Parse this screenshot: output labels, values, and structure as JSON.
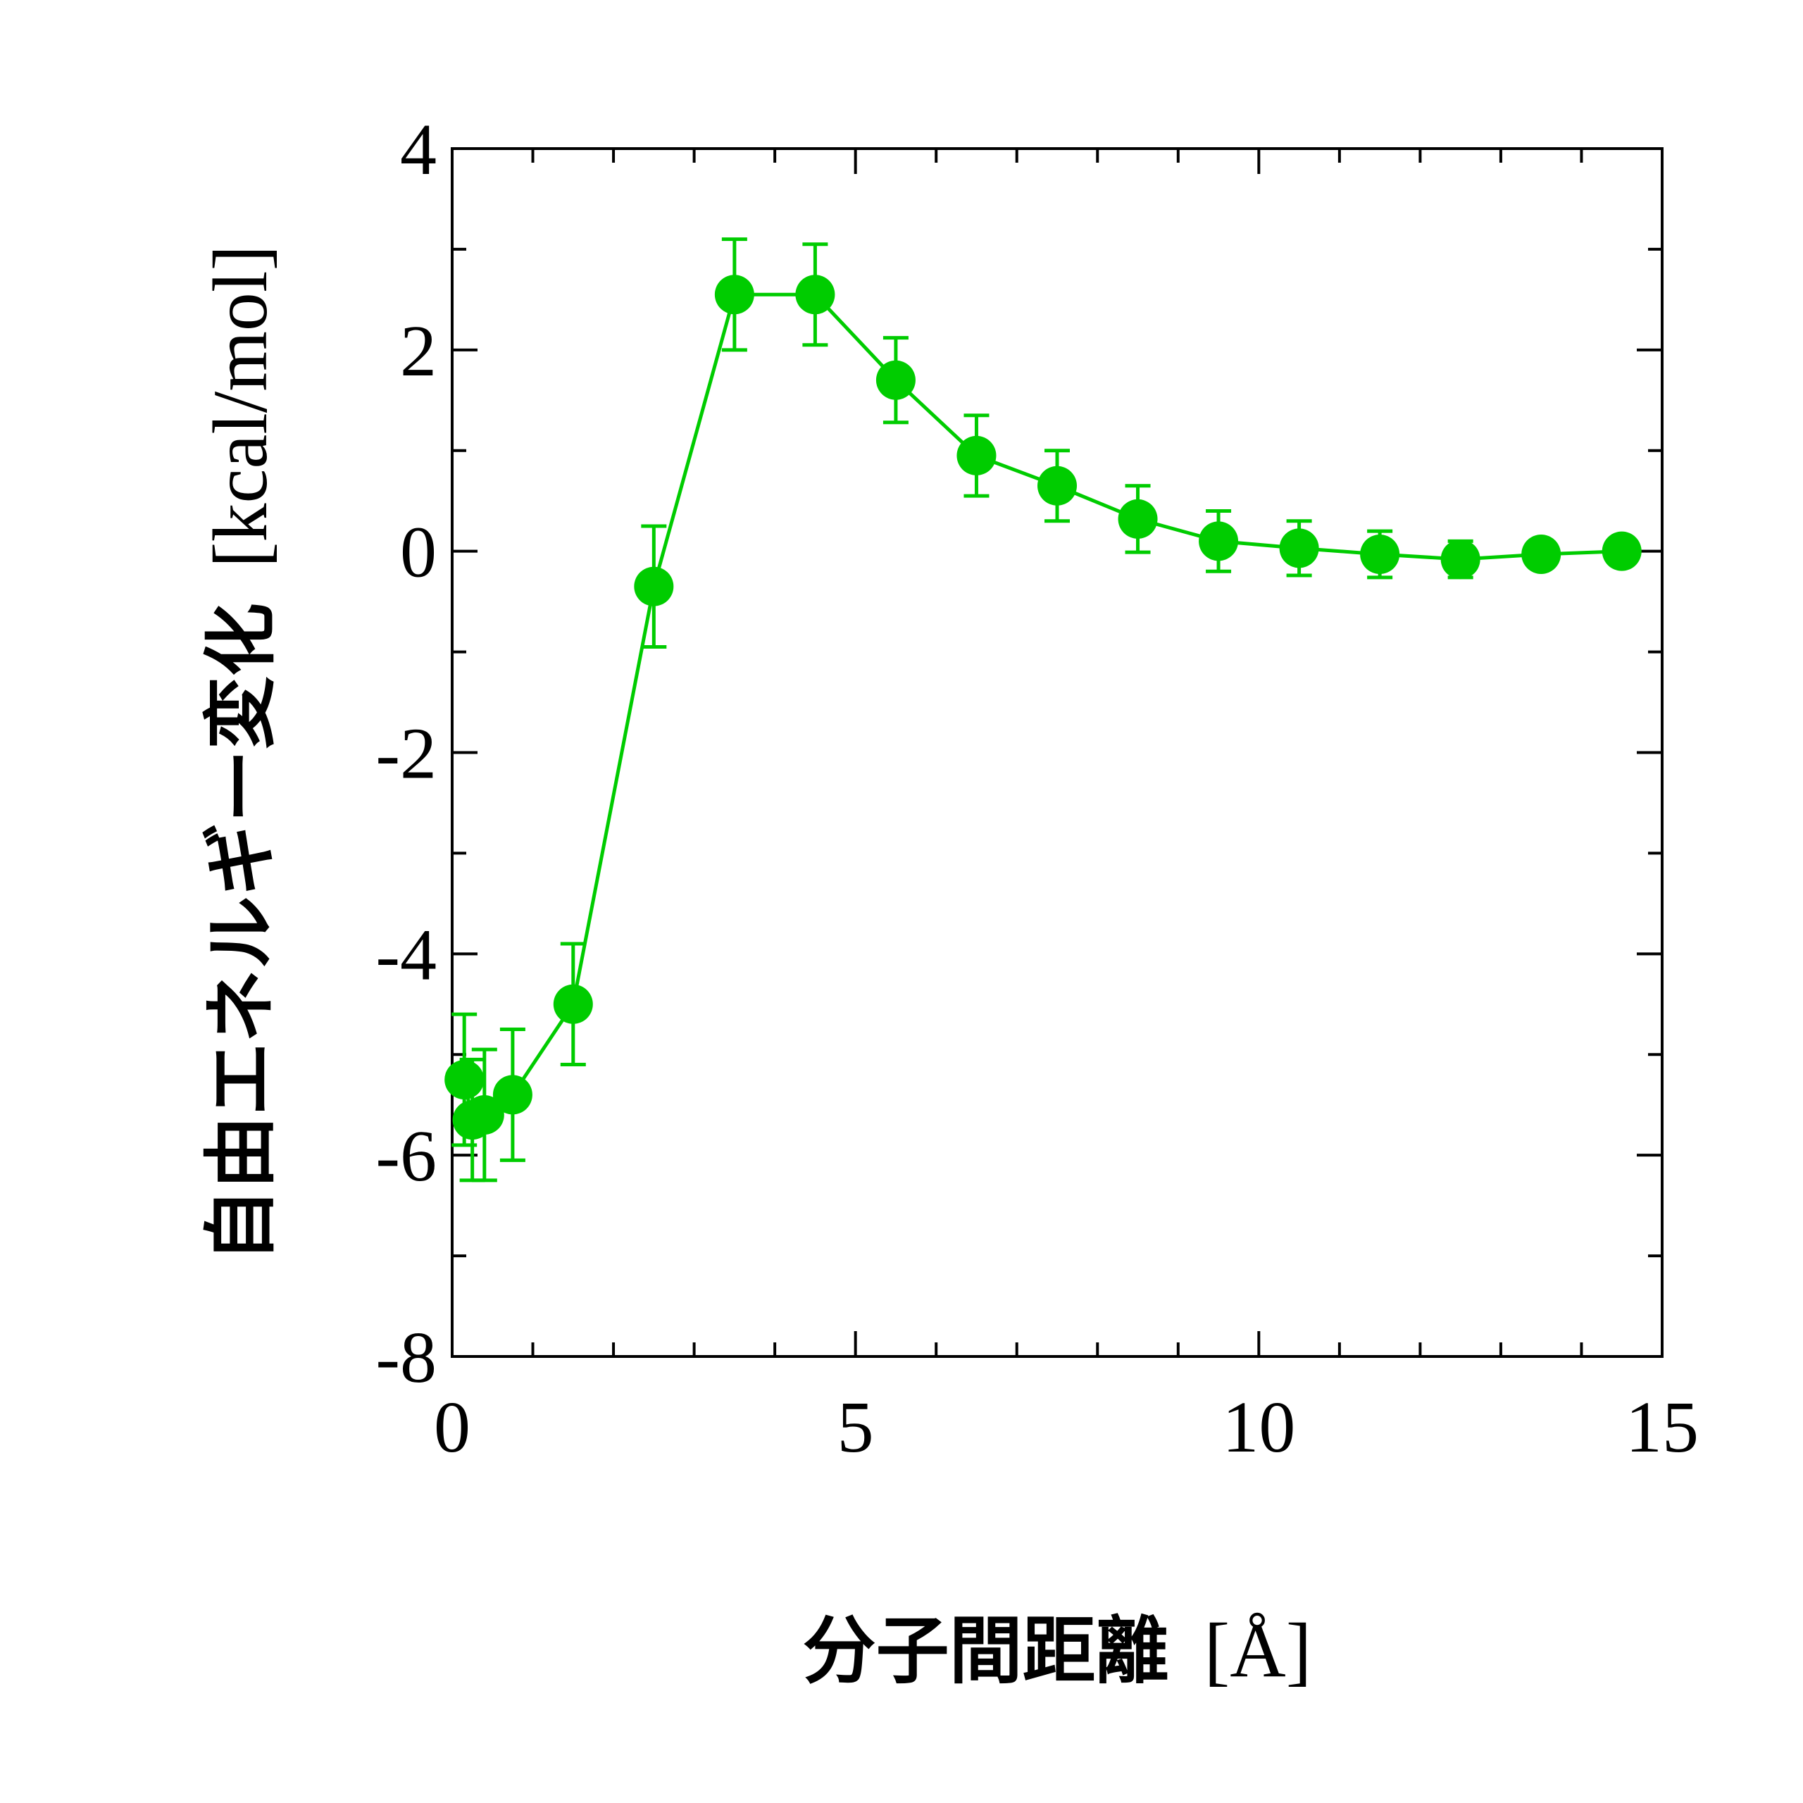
{
  "chart_data": {
    "type": "line",
    "title": "",
    "xlabel": {
      "main": "分子間距離",
      "unit": "[Å]"
    },
    "ylabel": {
      "main": "自由エネルギー変化",
      "unit": "[kcal/mol]"
    },
    "xlim": [
      0,
      15
    ],
    "ylim": [
      -8,
      4
    ],
    "xticks": [
      0,
      5,
      10,
      15
    ],
    "xtick_labels": [
      "0",
      "5",
      "10",
      "15"
    ],
    "yticks": [
      -8,
      -6,
      -4,
      -2,
      0,
      2,
      4
    ],
    "ytick_labels": [
      "-8",
      "-6",
      "-4",
      "-2",
      "0",
      "2",
      "4"
    ],
    "x_minor_step": 1,
    "y_minor_step": 1,
    "grid": false,
    "legend": "none",
    "series": [
      {
        "color": "#00cc00",
        "marker": "circle",
        "points": [
          {
            "x": 0.15,
            "y": -5.25,
            "err": 0.65
          },
          {
            "x": 0.25,
            "y": -5.65,
            "err": 0.6
          },
          {
            "x": 0.4,
            "y": -5.6,
            "err": 0.65
          },
          {
            "x": 0.75,
            "y": -5.4,
            "err": 0.65
          },
          {
            "x": 1.5,
            "y": -4.5,
            "err": 0.6
          },
          {
            "x": 2.5,
            "y": -0.35,
            "err": 0.6
          },
          {
            "x": 3.5,
            "y": 2.55,
            "err": 0.55
          },
          {
            "x": 4.5,
            "y": 2.55,
            "err": 0.5
          },
          {
            "x": 5.5,
            "y": 1.7,
            "err": 0.42
          },
          {
            "x": 6.5,
            "y": 0.95,
            "err": 0.4
          },
          {
            "x": 7.5,
            "y": 0.65,
            "err": 0.35
          },
          {
            "x": 8.5,
            "y": 0.32,
            "err": 0.33
          },
          {
            "x": 9.5,
            "y": 0.1,
            "err": 0.3
          },
          {
            "x": 10.5,
            "y": 0.03,
            "err": 0.27
          },
          {
            "x": 11.5,
            "y": -0.03,
            "err": 0.23
          },
          {
            "x": 12.5,
            "y": -0.08,
            "err": 0.18
          },
          {
            "x": 13.5,
            "y": -0.03,
            "err": 0.1
          },
          {
            "x": 14.5,
            "y": 0.0,
            "err": 0.05
          }
        ]
      }
    ]
  }
}
